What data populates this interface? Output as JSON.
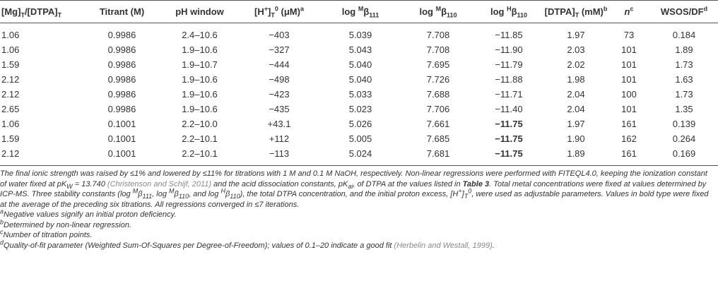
{
  "table": {
    "header": [
      [
        "[Mg]",
        {
          "text": "T",
          "style": "sub"
        },
        "/[DTPA]",
        {
          "text": "T",
          "style": "sub"
        }
      ],
      [
        "Titrant (M)"
      ],
      [
        "pH window"
      ],
      [
        "[H",
        {
          "text": "+",
          "style": "sup"
        },
        "]",
        {
          "text": "T",
          "style": "sub"
        },
        {
          "text": "0",
          "style": "sup"
        },
        " (μM)",
        {
          "text": "a",
          "style": "sup"
        }
      ],
      [
        "log ",
        {
          "text": "M",
          "style": "sup"
        },
        "β",
        {
          "text": "111",
          "style": "sub"
        }
      ],
      [
        "log ",
        {
          "text": "M",
          "style": "sup"
        },
        "β",
        {
          "text": "110",
          "style": "sub"
        }
      ],
      [
        "log ",
        {
          "text": "H",
          "style": "sup"
        },
        "β",
        {
          "text": "110",
          "style": "sub"
        }
      ],
      [
        "[DTPA]",
        {
          "text": "T",
          "style": "sub"
        },
        " (mM)",
        {
          "text": "b",
          "style": "sup"
        }
      ],
      [
        {
          "text": "n",
          "style": "italic"
        },
        {
          "text": "c",
          "style": "sup"
        }
      ],
      [
        "WSOS/DF",
        {
          "text": "d",
          "style": "sup"
        }
      ]
    ],
    "rows": [
      [
        "1.06",
        "0.9986",
        "2.4–10.6",
        "−403",
        "5.039",
        "7.708",
        "−11.85",
        "1.97",
        "73",
        "0.184"
      ],
      [
        "1.06",
        "0.9986",
        "1.9–10.6",
        "−327",
        "5.043",
        "7.708",
        "−11.90",
        "2.03",
        "101",
        "1.89"
      ],
      [
        "1.59",
        "0.9986",
        "1.9–10.7",
        "−444",
        "5.040",
        "7.695",
        "−11.79",
        "2.02",
        "101",
        "1.73"
      ],
      [
        "2.12",
        "0.9986",
        "1.9–10.6",
        "−498",
        "5.040",
        "7.726",
        "−11.88",
        "1.98",
        "101",
        "1.63"
      ],
      [
        "2.12",
        "0.9986",
        "1.9–10.6",
        "−423",
        "5.033",
        "7.688",
        "−11.71",
        "2.04",
        "100",
        "1.73"
      ],
      [
        "2.65",
        "0.9986",
        "1.9–10.6",
        "−435",
        "5.023",
        "7.706",
        "−11.40",
        "2.04",
        "101",
        "1.35"
      ],
      [
        "1.06",
        "0.1001",
        "2.2–10.0",
        "+43.1",
        "5.026",
        "7.661",
        {
          "text": "−11.75",
          "style": "bold"
        },
        "1.97",
        "161",
        "0.139"
      ],
      [
        "1.59",
        "0.1001",
        "2.2–10.1",
        "+112",
        "5.005",
        "7.685",
        {
          "text": "−11.75",
          "style": "bold"
        },
        "1.90",
        "162",
        "0.264"
      ],
      [
        "2.12",
        "0.1001",
        "2.2–10.1",
        "−113",
        "5.024",
        "7.681",
        {
          "text": "−11.75",
          "style": "bold"
        },
        "1.89",
        "161",
        "0.169"
      ]
    ]
  },
  "notes": [
    [
      "The final ionic strength was raised by ≤1% and lowered by ≤11% for titrations with 1 M and 0.1 M NaOH, respectively. Non-linear regressions were performed with FITEQL4.0, keeping the ionization constant of water fixed at pK",
      {
        "text": "W",
        "style": "sub"
      },
      " = 13.740 ",
      {
        "text": "(Christenson and Schijf, 2011)",
        "style": "link"
      },
      " and the acid dissociation constants, pK",
      {
        "text": "ai",
        "style": "sub"
      },
      ", of DTPA at the values listed in ",
      {
        "text": "Table 3",
        "style": "bold"
      },
      ". Total metal concentrations were fixed at values determined by ICP-MS. Three stability constants (log ",
      {
        "text": "M",
        "style": "sup"
      },
      "β",
      {
        "text": "111",
        "style": "sub"
      },
      ", log ",
      {
        "text": "M",
        "style": "sup"
      },
      "β",
      {
        "text": "110",
        "style": "sub"
      },
      ", and log ",
      {
        "text": "H",
        "style": "sup"
      },
      "β",
      {
        "text": "110",
        "style": "sub"
      },
      "), the total DTPA concentration, and the initial proton excess, [H",
      {
        "text": "+",
        "style": "sup"
      },
      "]",
      {
        "text": "T",
        "style": "sub"
      },
      {
        "text": "0",
        "style": "sup"
      },
      ", were used as adjustable parameters. Values in bold type were fixed at the average of the preceding six titrations. All regressions converged in ≤7 iterations."
    ],
    [
      {
        "text": "a",
        "style": "sup"
      },
      "Negative values signify an initial proton deficiency."
    ],
    [
      {
        "text": "b",
        "style": "sup"
      },
      "Determined by non-linear regression."
    ],
    [
      {
        "text": "c",
        "style": "sup"
      },
      "Number of titration points."
    ],
    [
      {
        "text": "d",
        "style": "sup"
      },
      "Quality-of-fit parameter (Weighted Sum-Of-Squares per Degree-of-Freedom); values of 0.1–20 indicate a good fit ",
      {
        "text": "(Herbelin and Westall, 1999)",
        "style": "link"
      },
      "."
    ]
  ]
}
